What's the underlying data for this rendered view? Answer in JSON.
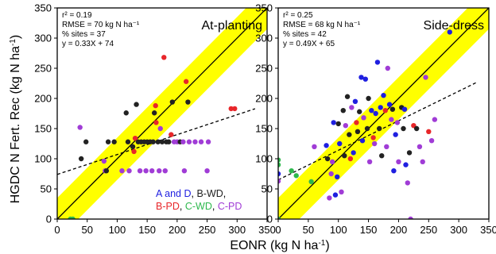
{
  "figure": {
    "xlabel": "EONR (kg N ha",
    "xlabel_sup": "-1",
    "xlabel_end": ")",
    "ylabel": "HGDC N Fert. Rec (kg N ha",
    "ylabel_sup": "-1",
    "ylabel_end": ")"
  },
  "legend": {
    "entries": [
      {
        "label": "A and D",
        "suffix": ",",
        "color": "#1f1fe0"
      },
      {
        "label": "B-WD",
        "suffix": ",",
        "color": "#222222"
      },
      {
        "label": "B-PD",
        "suffix": ",",
        "color": "#e8262a"
      },
      {
        "label": "C-WD",
        "suffix": ",",
        "color": "#2db84d"
      },
      {
        "label": "C-PD",
        "suffix": "",
        "color": "#a03cd6"
      }
    ]
  },
  "chart_data": [
    {
      "type": "scatter",
      "title": "At-planting",
      "stats": [
        "r² = 0.19",
        "RMSE = 70 kg N ha⁻¹",
        "% sites = 37",
        "y = 0.33X + 74"
      ],
      "xlim": [
        0,
        350
      ],
      "ylim": [
        0,
        350
      ],
      "xticks": [
        "0",
        "50",
        "100",
        "150",
        "200",
        "250",
        "300",
        "350"
      ],
      "yticks": [
        "0",
        "50",
        "100",
        "150",
        "200",
        "250",
        "300",
        "350"
      ],
      "band_halfwidth": 35,
      "regression": {
        "slope": 0.33,
        "intercept": 74
      },
      "points": [
        {
          "x": 22,
          "y": 0,
          "g": "C-WD"
        },
        {
          "x": 26,
          "y": 0,
          "g": "C-WD"
        },
        {
          "x": 38,
          "y": 152,
          "g": "C-PD"
        },
        {
          "x": 40,
          "y": 100,
          "g": "B-WD"
        },
        {
          "x": 48,
          "y": 128,
          "g": "B-WD"
        },
        {
          "x": 78,
          "y": 96,
          "g": "C-PD"
        },
        {
          "x": 80,
          "y": 80,
          "g": "C-PD"
        },
        {
          "x": 82,
          "y": 80,
          "g": "B-WD"
        },
        {
          "x": 85,
          "y": 128,
          "g": "B-WD"
        },
        {
          "x": 95,
          "y": 128,
          "g": "B-WD"
        },
        {
          "x": 108,
          "y": 80,
          "g": "C-PD"
        },
        {
          "x": 115,
          "y": 176,
          "g": "B-WD"
        },
        {
          "x": 118,
          "y": 128,
          "g": "B-WD"
        },
        {
          "x": 120,
          "y": 80,
          "g": "C-PD"
        },
        {
          "x": 126,
          "y": 120,
          "g": "B-WD"
        },
        {
          "x": 128,
          "y": 112,
          "g": "B-PD"
        },
        {
          "x": 130,
          "y": 134,
          "g": "B-PD"
        },
        {
          "x": 132,
          "y": 190,
          "g": "B-WD"
        },
        {
          "x": 135,
          "y": 128,
          "g": "B-WD"
        },
        {
          "x": 138,
          "y": 80,
          "g": "C-PD"
        },
        {
          "x": 140,
          "y": 128,
          "g": "B-WD"
        },
        {
          "x": 145,
          "y": 128,
          "g": "B-WD"
        },
        {
          "x": 148,
          "y": 80,
          "g": "C-PD"
        },
        {
          "x": 150,
          "y": 128,
          "g": "B-WD"
        },
        {
          "x": 155,
          "y": 128,
          "g": "B-WD"
        },
        {
          "x": 158,
          "y": 80,
          "g": "C-PD"
        },
        {
          "x": 160,
          "y": 128,
          "g": "B-WD"
        },
        {
          "x": 162,
          "y": 176,
          "g": "B-WD"
        },
        {
          "x": 164,
          "y": 188,
          "g": "B-PD"
        },
        {
          "x": 165,
          "y": 160,
          "g": "B-PD"
        },
        {
          "x": 168,
          "y": 128,
          "g": "B-WD"
        },
        {
          "x": 170,
          "y": 80,
          "g": "C-PD"
        },
        {
          "x": 172,
          "y": 150,
          "g": "C-PD"
        },
        {
          "x": 175,
          "y": 128,
          "g": "B-WD"
        },
        {
          "x": 178,
          "y": 268,
          "g": "B-PD"
        },
        {
          "x": 180,
          "y": 80,
          "g": "C-PD"
        },
        {
          "x": 182,
          "y": 128,
          "g": "B-WD"
        },
        {
          "x": 186,
          "y": 128,
          "g": "B-WD"
        },
        {
          "x": 190,
          "y": 140,
          "g": "B-PD"
        },
        {
          "x": 192,
          "y": 194,
          "g": "B-WD"
        },
        {
          "x": 195,
          "y": 128,
          "g": "C-PD"
        },
        {
          "x": 200,
          "y": 128,
          "g": "C-PD"
        },
        {
          "x": 205,
          "y": 128,
          "g": "B-WD"
        },
        {
          "x": 210,
          "y": 128,
          "g": "C-PD"
        },
        {
          "x": 212,
          "y": 80,
          "g": "C-PD"
        },
        {
          "x": 215,
          "y": 228,
          "g": "B-PD"
        },
        {
          "x": 218,
          "y": 194,
          "g": "B-WD"
        },
        {
          "x": 220,
          "y": 128,
          "g": "C-PD"
        },
        {
          "x": 230,
          "y": 128,
          "g": "C-PD"
        },
        {
          "x": 240,
          "y": 128,
          "g": "C-PD"
        },
        {
          "x": 250,
          "y": 80,
          "g": "C-PD"
        },
        {
          "x": 252,
          "y": 128,
          "g": "C-PD"
        },
        {
          "x": 290,
          "y": 183,
          "g": "B-PD"
        },
        {
          "x": 296,
          "y": 183,
          "g": "B-PD"
        }
      ]
    },
    {
      "type": "scatter",
      "title": "Side-dress",
      "stats": [
        "r² = 0.25",
        "RMSE = 68 kg N ha⁻¹",
        "% sites = 42",
        "y = 0.49X + 65"
      ],
      "xlim": [
        0,
        350
      ],
      "ylim": [
        0,
        350
      ],
      "xticks": [
        "0",
        "50",
        "100",
        "150",
        "200",
        "250",
        "300",
        "350"
      ],
      "yticks": [
        "0",
        "50",
        "100",
        "150",
        "200",
        "250",
        "300",
        "350"
      ],
      "band_halfwidth": 35,
      "regression": {
        "slope": 0.49,
        "intercept": 65
      },
      "points": [
        {
          "x": 0,
          "y": 0,
          "g": "C-WD"
        },
        {
          "x": 0,
          "y": 63,
          "g": "C-PD"
        },
        {
          "x": 0,
          "y": 75,
          "g": "A and D"
        },
        {
          "x": 0,
          "y": 90,
          "g": "C-WD"
        },
        {
          "x": 0,
          "y": 98,
          "g": "C-WD"
        },
        {
          "x": 22,
          "y": 80,
          "g": "C-WD"
        },
        {
          "x": 30,
          "y": 72,
          "g": "C-WD"
        },
        {
          "x": 55,
          "y": 62,
          "g": "C-WD"
        },
        {
          "x": 60,
          "y": 120,
          "g": "C-PD"
        },
        {
          "x": 80,
          "y": 122,
          "g": "A and D"
        },
        {
          "x": 82,
          "y": 100,
          "g": "B-WD"
        },
        {
          "x": 85,
          "y": 35,
          "g": "C-PD"
        },
        {
          "x": 88,
          "y": 75,
          "g": "C-PD"
        },
        {
          "x": 90,
          "y": 95,
          "g": "C-PD"
        },
        {
          "x": 92,
          "y": 160,
          "g": "A and D"
        },
        {
          "x": 95,
          "y": 40,
          "g": "A and D"
        },
        {
          "x": 98,
          "y": 70,
          "g": "A and D"
        },
        {
          "x": 100,
          "y": 158,
          "g": "B-WD"
        },
        {
          "x": 102,
          "y": 125,
          "g": "A and D"
        },
        {
          "x": 105,
          "y": 45,
          "g": "C-PD"
        },
        {
          "x": 108,
          "y": 180,
          "g": "B-WD"
        },
        {
          "x": 110,
          "y": 105,
          "g": "B-WD"
        },
        {
          "x": 112,
          "y": 155,
          "g": "C-PD"
        },
        {
          "x": 115,
          "y": 203,
          "g": "B-WD"
        },
        {
          "x": 118,
          "y": 140,
          "g": "B-WD"
        },
        {
          "x": 120,
          "y": 100,
          "g": "B-PD"
        },
        {
          "x": 122,
          "y": 185,
          "g": "C-PD"
        },
        {
          "x": 125,
          "y": 110,
          "g": "A and D"
        },
        {
          "x": 128,
          "y": 195,
          "g": "A and D"
        },
        {
          "x": 130,
          "y": 160,
          "g": "B-PD"
        },
        {
          "x": 132,
          "y": 145,
          "g": "B-WD"
        },
        {
          "x": 135,
          "y": 178,
          "g": "B-WD"
        },
        {
          "x": 138,
          "y": 235,
          "g": "A and D"
        },
        {
          "x": 140,
          "y": 130,
          "g": "A and D"
        },
        {
          "x": 142,
          "y": 168,
          "g": "C-PD"
        },
        {
          "x": 145,
          "y": 232,
          "g": "A and D"
        },
        {
          "x": 148,
          "y": 150,
          "g": "B-WD"
        },
        {
          "x": 150,
          "y": 200,
          "g": "B-WD"
        },
        {
          "x": 152,
          "y": 95,
          "g": "C-PD"
        },
        {
          "x": 155,
          "y": 180,
          "g": "A and D"
        },
        {
          "x": 158,
          "y": 135,
          "g": "B-PD"
        },
        {
          "x": 160,
          "y": 125,
          "g": "C-PD"
        },
        {
          "x": 162,
          "y": 175,
          "g": "A and D"
        },
        {
          "x": 165,
          "y": 260,
          "g": "A and D"
        },
        {
          "x": 168,
          "y": 150,
          "g": "B-WD"
        },
        {
          "x": 170,
          "y": 185,
          "g": "A and D"
        },
        {
          "x": 172,
          "y": 105,
          "g": "B-WD"
        },
        {
          "x": 175,
          "y": 205,
          "g": "A and D"
        },
        {
          "x": 178,
          "y": 180,
          "g": "B-PD"
        },
        {
          "x": 180,
          "y": 120,
          "g": "C-PD"
        },
        {
          "x": 182,
          "y": 250,
          "g": "C-PD"
        },
        {
          "x": 185,
          "y": 190,
          "g": "A and D"
        },
        {
          "x": 188,
          "y": 165,
          "g": "C-PD"
        },
        {
          "x": 190,
          "y": 182,
          "g": "B-WD"
        },
        {
          "x": 192,
          "y": 80,
          "g": "A and D"
        },
        {
          "x": 195,
          "y": 140,
          "g": "A and D"
        },
        {
          "x": 198,
          "y": 160,
          "g": "C-PD"
        },
        {
          "x": 200,
          "y": 95,
          "g": "C-PD"
        },
        {
          "x": 205,
          "y": 185,
          "g": "B-WD"
        },
        {
          "x": 208,
          "y": 150,
          "g": "B-WD"
        },
        {
          "x": 210,
          "y": 182,
          "g": "A and D"
        },
        {
          "x": 212,
          "y": 90,
          "g": "A and D"
        },
        {
          "x": 215,
          "y": 60,
          "g": "C-PD"
        },
        {
          "x": 218,
          "y": 110,
          "g": "B-WD"
        },
        {
          "x": 220,
          "y": 0,
          "g": "C-PD"
        },
        {
          "x": 225,
          "y": 155,
          "g": "B-PD"
        },
        {
          "x": 230,
          "y": 150,
          "g": "B-WD"
        },
        {
          "x": 235,
          "y": 120,
          "g": "C-PD"
        },
        {
          "x": 240,
          "y": 95,
          "g": "C-PD"
        },
        {
          "x": 245,
          "y": 235,
          "g": "C-PD"
        },
        {
          "x": 250,
          "y": 145,
          "g": "B-PD"
        },
        {
          "x": 255,
          "y": 130,
          "g": "C-PD"
        },
        {
          "x": 260,
          "y": 165,
          "g": "C-PD"
        },
        {
          "x": 285,
          "y": 310,
          "g": "A and D"
        }
      ]
    }
  ]
}
